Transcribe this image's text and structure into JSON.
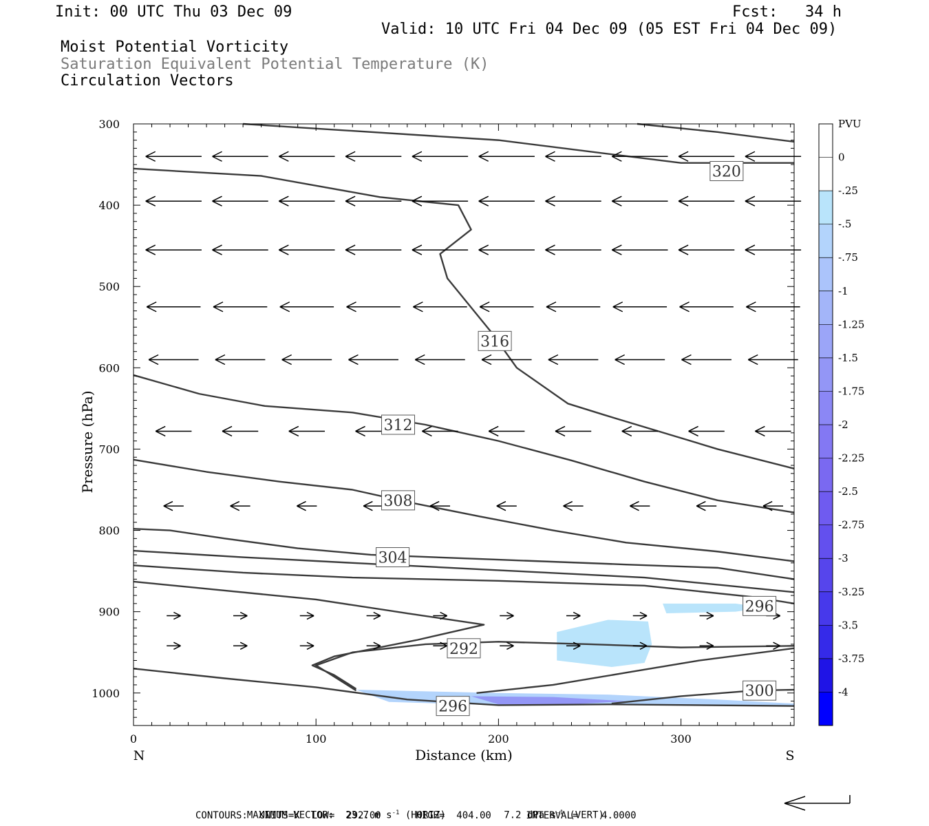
{
  "header": {
    "init": "Init: 00 UTC Thu 03 Dec 09",
    "fcst": "Fcst:   34 h",
    "valid": "Valid: 10 UTC Fri 04 Dec 09 (05 EST Fri 04 Dec 09)",
    "title1": "Moist Potential Vorticity",
    "title2": "Saturation Equivalent Potential Temperature (K)",
    "title3": "Circulation Vectors"
  },
  "chart_data": {
    "type": "cross-section",
    "xlabel": "Distance (km)",
    "ylabel": "Pressure (hPa)",
    "xlim": [
      0,
      362
    ],
    "ylim": [
      1040,
      300
    ],
    "x_ticks": [
      0,
      100,
      200,
      300
    ],
    "y_ticks": [
      300,
      400,
      500,
      600,
      700,
      800,
      900,
      1000
    ],
    "x_end_labels": {
      "left": "N",
      "right": "S"
    },
    "contour_labels": [
      {
        "value": "320",
        "x": 325,
        "p": 358
      },
      {
        "value": "316",
        "x": 198,
        "p": 567
      },
      {
        "value": "312",
        "x": 145,
        "p": 670
      },
      {
        "value": "308",
        "x": 145,
        "p": 763
      },
      {
        "value": "304",
        "x": 142,
        "p": 833
      },
      {
        "value": "296",
        "x": 343,
        "p": 893
      },
      {
        "value": "292",
        "x": 181,
        "p": 945
      },
      {
        "value": "300",
        "x": 343,
        "p": 997
      },
      {
        "value": "296",
        "x": 175,
        "p": 1016
      }
    ],
    "contour_lines": [
      {
        "name": "320-a",
        "points": [
          [
            60,
            300
          ],
          [
            200,
            320
          ],
          [
            300,
            348
          ],
          [
            362,
            348
          ]
        ]
      },
      {
        "name": "320-b",
        "points": [
          [
            276,
            300
          ],
          [
            320,
            310
          ],
          [
            362,
            322
          ]
        ]
      },
      {
        "name": "316",
        "points": [
          [
            0,
            355
          ],
          [
            70,
            364
          ],
          [
            135,
            390
          ],
          [
            178,
            400
          ],
          [
            185,
            430
          ],
          [
            168,
            460
          ],
          [
            172,
            490
          ],
          [
            196,
            556
          ],
          [
            210,
            600
          ],
          [
            238,
            644
          ],
          [
            258,
            658
          ],
          [
            298,
            685
          ],
          [
            320,
            700
          ],
          [
            362,
            724
          ]
        ]
      },
      {
        "name": "312",
        "points": [
          [
            0,
            609
          ],
          [
            36,
            632
          ],
          [
            72,
            647
          ],
          [
            120,
            655
          ],
          [
            160,
            670
          ],
          [
            200,
            690
          ],
          [
            240,
            714
          ],
          [
            280,
            740
          ],
          [
            320,
            763
          ],
          [
            362,
            778
          ]
        ]
      },
      {
        "name": "308",
        "points": [
          [
            0,
            713
          ],
          [
            40,
            728
          ],
          [
            80,
            740
          ],
          [
            120,
            750
          ],
          [
            150,
            765
          ],
          [
            190,
            783
          ],
          [
            230,
            800
          ],
          [
            270,
            815
          ],
          [
            320,
            826
          ],
          [
            362,
            838
          ]
        ]
      },
      {
        "name": "304",
        "points": [
          [
            0,
            798
          ],
          [
            20,
            800
          ],
          [
            50,
            810
          ],
          [
            90,
            822
          ],
          [
            130,
            830
          ],
          [
            200,
            836
          ],
          [
            270,
            842
          ],
          [
            320,
            846
          ],
          [
            362,
            860
          ]
        ]
      },
      {
        "name": "300-mid",
        "points": [
          [
            0,
            825
          ],
          [
            60,
            833
          ],
          [
            120,
            840
          ],
          [
            200,
            849
          ],
          [
            280,
            858
          ],
          [
            362,
            876
          ]
        ]
      },
      {
        "name": "300-low",
        "points": [
          [
            0,
            843
          ],
          [
            60,
            852
          ],
          [
            120,
            858
          ],
          [
            200,
            862
          ],
          [
            280,
            868
          ],
          [
            340,
            882
          ],
          [
            362,
            890
          ]
        ]
      },
      {
        "name": "296-upper",
        "points": [
          [
            0,
            863
          ],
          [
            50,
            874
          ],
          [
            100,
            885
          ],
          [
            150,
            902
          ],
          [
            192,
            916
          ],
          [
            155,
            935
          ],
          [
            110,
            955
          ],
          [
            98,
            966
          ],
          [
            110,
            978
          ],
          [
            122,
            995
          ]
        ]
      },
      {
        "name": "292",
        "points": [
          [
            122,
            997
          ],
          [
            110,
            980
          ],
          [
            100,
            966
          ],
          [
            120,
            950
          ],
          [
            160,
            940
          ],
          [
            200,
            937
          ],
          [
            250,
            940
          ],
          [
            300,
            944
          ],
          [
            362,
            942
          ]
        ]
      },
      {
        "name": "300-bottom",
        "points": [
          [
            188,
            1000
          ],
          [
            230,
            990
          ],
          [
            270,
            975
          ],
          [
            310,
            960
          ],
          [
            362,
            945
          ]
        ]
      },
      {
        "name": "300-right",
        "points": [
          [
            262,
            1013
          ],
          [
            300,
            1004
          ],
          [
            340,
            997
          ],
          [
            362,
            996
          ]
        ]
      },
      {
        "name": "296-surface",
        "points": [
          [
            0,
            970
          ],
          [
            50,
            982
          ],
          [
            100,
            993
          ],
          [
            150,
            1008
          ],
          [
            200,
            1015
          ],
          [
            260,
            1014
          ],
          [
            362,
            1016
          ]
        ]
      }
    ],
    "mpv_shading": [
      {
        "name": "blob-mid",
        "value": -0.25,
        "points": [
          [
            232,
            925
          ],
          [
            260,
            910
          ],
          [
            282,
            912
          ],
          [
            284,
            940
          ],
          [
            280,
            963
          ],
          [
            262,
            968
          ],
          [
            232,
            960
          ]
        ]
      },
      {
        "name": "blob-right",
        "value": -0.25,
        "points": [
          [
            290,
            890
          ],
          [
            330,
            890
          ],
          [
            345,
            895
          ],
          [
            330,
            900
          ],
          [
            292,
            902
          ]
        ]
      },
      {
        "name": "band-surface",
        "value": -0.5,
        "points": [
          [
            122,
            996
          ],
          [
            200,
            1000
          ],
          [
            260,
            1002
          ],
          [
            320,
            1008
          ],
          [
            362,
            1013
          ],
          [
            362,
            1016
          ],
          [
            260,
            1014
          ],
          [
            200,
            1015
          ],
          [
            140,
            1011
          ]
        ]
      },
      {
        "name": "band-deep",
        "value": -1.5,
        "points": [
          [
            185,
            1004
          ],
          [
            230,
            1005
          ],
          [
            270,
            1010
          ],
          [
            240,
            1014
          ],
          [
            200,
            1014
          ]
        ]
      }
    ],
    "vector_rows": [
      {
        "p": 340,
        "u": -28,
        "w": 0
      },
      {
        "p": 395,
        "u": -28,
        "w": 0
      },
      {
        "p": 455,
        "u": -28,
        "w": 0
      },
      {
        "p": 525,
        "u": -27,
        "w": 0
      },
      {
        "p": 590,
        "u": -25,
        "w": 0
      },
      {
        "p": 678,
        "u": -18,
        "w": 0
      },
      {
        "p": 770,
        "u": -10,
        "w": 0
      },
      {
        "p": 905,
        "u": 7,
        "w": 0
      },
      {
        "p": 942,
        "u": 7,
        "w": 0
      }
    ],
    "colorbar": {
      "units": "PVU",
      "labels": [
        "0",
        "-.25",
        "-.5",
        "-.75",
        "-1",
        "-1.25",
        "-1.5",
        "-1.75",
        "-2",
        "-2.25",
        "-2.5",
        "-2.75",
        "-3",
        "-3.25",
        "-3.5",
        "-3.75",
        "-4"
      ],
      "colors": [
        "#ffffff",
        "#ffffff",
        "#b9e4fb",
        "#b3d4fc",
        "#abc4fb",
        "#a3b5f9",
        "#9ba5f8",
        "#9396f6",
        "#8b87f5",
        "#8378f3",
        "#7a69f1",
        "#6f5bf0",
        "#6350ee",
        "#5645ec",
        "#4739eb",
        "#352ae9",
        "#1f14e6",
        "#0000ff"
      ]
    }
  },
  "footer": {
    "max_vector_label": "MAXIMUM VECTOR:",
    "horiz": "23.7 m s",
    "horiz_exp": "-1",
    "horiz_tag": "(HORIZ)",
    "vert": "7.2 dPa s",
    "vert_exp": "-1",
    "vert_tag": "(VERT)",
    "contours": "CONTOURS:  UNITS=K  LOW=  292.00      HIGH=  404.00      INTERVAL=    4.0000"
  }
}
